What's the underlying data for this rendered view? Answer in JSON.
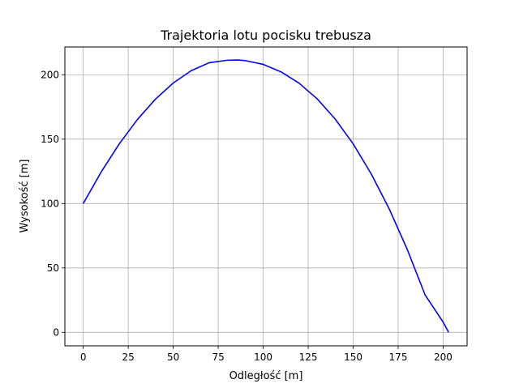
{
  "chart_data": {
    "type": "line",
    "title": "Trajektoria lotu pocisku trebusza",
    "xlabel": "Odległość [m]",
    "ylabel": "Wysokość [m]",
    "xlim": [
      -10.2,
      213.3
    ],
    "ylim": [
      -10.5,
      221.6
    ],
    "xticks": [
      0,
      25,
      50,
      75,
      100,
      125,
      150,
      175,
      200
    ],
    "yticks": [
      0,
      50,
      100,
      150,
      200
    ],
    "grid": true,
    "series": [
      {
        "color": "#0000ff",
        "x": [
          0,
          10,
          20,
          30,
          40,
          50,
          60,
          70,
          80,
          86,
          90,
          100,
          110,
          120,
          130,
          140,
          150,
          160,
          170,
          180,
          190,
          200,
          203
        ],
        "y": [
          100,
          124.6,
          146.3,
          165.1,
          180.9,
          193.6,
          203.2,
          209.4,
          211.3,
          211.5,
          211,
          208.1,
          202.2,
          193.4,
          181.3,
          165.6,
          146.3,
          123.1,
          95.9,
          64.5,
          28.9,
          7.9,
          0
        ]
      }
    ]
  }
}
